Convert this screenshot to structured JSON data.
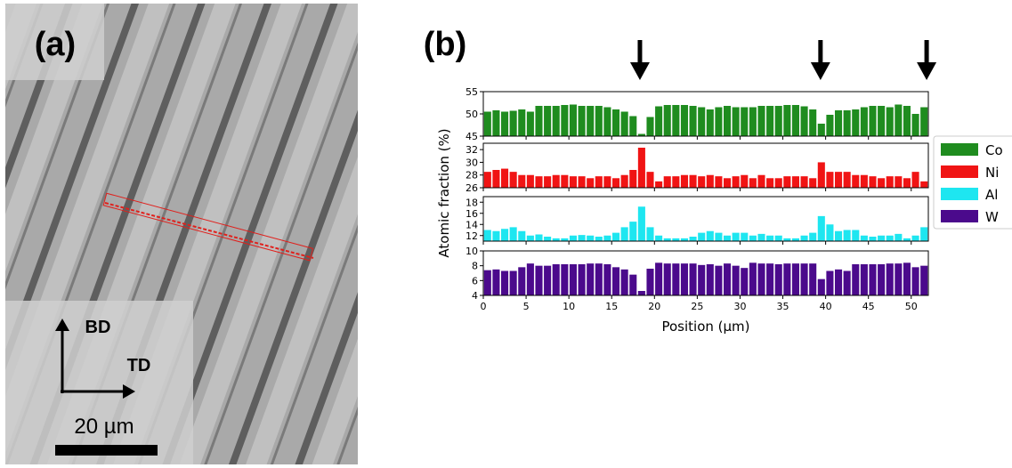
{
  "panel_a": {
    "label": "(a)",
    "direction_up": "BD",
    "direction_right": "TD",
    "scale_bar": "20 µm"
  },
  "chart_data": {
    "type": "bar",
    "label": "(b)",
    "x_label": "Position (µm)",
    "y_label": "Atomic fraction (%)",
    "xlim": [
      0,
      52
    ],
    "xticks": [
      0,
      5,
      10,
      15,
      20,
      25,
      30,
      35,
      40,
      45,
      50
    ],
    "x": [
      0.5,
      1.5,
      2.5,
      3.5,
      4.5,
      5.5,
      6.5,
      7.5,
      8.5,
      9.5,
      10.5,
      11.5,
      12.5,
      13.5,
      14.5,
      15.5,
      16.5,
      17.5,
      18.5,
      19.5,
      20.5,
      21.5,
      22.5,
      23.5,
      24.5,
      25.5,
      26.5,
      27.5,
      28.5,
      29.5,
      30.5,
      31.5,
      32.5,
      33.5,
      34.5,
      35.5,
      36.5,
      37.5,
      38.5,
      39.5,
      40.5,
      41.5,
      42.5,
      43.5,
      44.5,
      45.5,
      46.5,
      47.5,
      48.5,
      49.5,
      50.5,
      51.5
    ],
    "arrows_x": [
      18.3,
      39.4,
      51.8
    ],
    "series": [
      {
        "name": "Co",
        "color": "#1f8c1f",
        "ylim": [
          45,
          55
        ],
        "yticks": [
          45,
          50,
          55
        ],
        "values": [
          50.5,
          50.8,
          50.5,
          50.7,
          51,
          50.5,
          51.8,
          51.8,
          51.8,
          52,
          52.1,
          51.8,
          51.8,
          51.8,
          51.5,
          51,
          50.5,
          49.5,
          45.5,
          49.3,
          51.7,
          52,
          52,
          52,
          51.8,
          51.5,
          51,
          51.5,
          51.8,
          51.5,
          51.5,
          51.5,
          51.8,
          51.8,
          51.8,
          52,
          52,
          51.7,
          51,
          47.8,
          49.8,
          50.8,
          50.8,
          51,
          51.5,
          51.8,
          51.8,
          51.5,
          52.1,
          51.8,
          50,
          51.5
        ]
      },
      {
        "name": "Ni",
        "color": "#f01414",
        "ylim": [
          26,
          33
        ],
        "yticks": [
          26,
          28,
          30,
          32
        ],
        "values": [
          28.5,
          28.8,
          29,
          28.5,
          28,
          28,
          27.8,
          27.8,
          28,
          28,
          27.8,
          27.8,
          27.5,
          27.8,
          27.8,
          27.5,
          28,
          28.8,
          32.3,
          28.5,
          27,
          27.8,
          27.8,
          28,
          28,
          27.8,
          28,
          27.8,
          27.5,
          27.8,
          28,
          27.5,
          28,
          27.5,
          27.5,
          27.8,
          27.8,
          27.8,
          27.5,
          30,
          28.5,
          28.5,
          28.5,
          28,
          28,
          27.8,
          27.5,
          27.8,
          27.8,
          27.5,
          28.5,
          27
        ]
      },
      {
        "name": "Al",
        "color": "#1ee6f0",
        "ylim": [
          11,
          19
        ],
        "yticks": [
          12,
          14,
          16,
          18
        ],
        "values": [
          13,
          12.8,
          13.2,
          13.5,
          12.8,
          12,
          12.2,
          11.8,
          11.5,
          11.5,
          12,
          12.1,
          12,
          11.8,
          12,
          12.5,
          13.5,
          14.5,
          17.2,
          13.5,
          12,
          11.5,
          11.5,
          11.5,
          11.8,
          12.5,
          12.8,
          12.5,
          12,
          12.5,
          12.5,
          12,
          12.3,
          12,
          12,
          11.5,
          11.5,
          12,
          12.5,
          15.5,
          14,
          12.8,
          13,
          13,
          12,
          11.8,
          12,
          12,
          12.3,
          11.5,
          12,
          13.5
        ]
      },
      {
        "name": "W",
        "color": "#4b0a8c",
        "ylim": [
          4,
          10
        ],
        "yticks": [
          4,
          6,
          8,
          10
        ],
        "values": [
          7.4,
          7.5,
          7.3,
          7.3,
          7.8,
          8.3,
          8,
          8,
          8.2,
          8.2,
          8.2,
          8.2,
          8.3,
          8.3,
          8.2,
          7.8,
          7.5,
          6.8,
          4.6,
          7.6,
          8.4,
          8.3,
          8.3,
          8.3,
          8.3,
          8.1,
          8.2,
          8,
          8.3,
          8,
          7.7,
          8.4,
          8.3,
          8.3,
          8.2,
          8.3,
          8.3,
          8.3,
          8.3,
          6.2,
          7.3,
          7.5,
          7.3,
          8.2,
          8.2,
          8.2,
          8.2,
          8.3,
          8.3,
          8.4,
          7.8,
          8
        ]
      }
    ]
  }
}
